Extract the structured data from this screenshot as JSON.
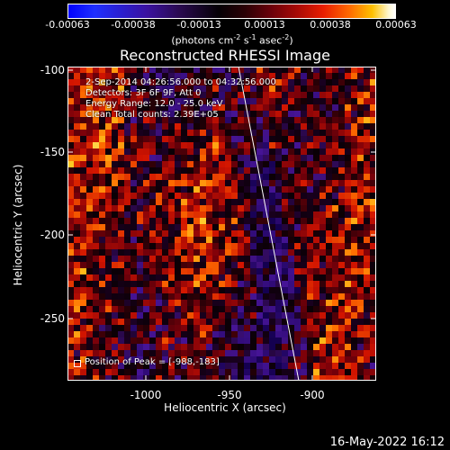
{
  "colorbar": {
    "ticks": [
      "-0.00063",
      "-0.00038",
      "-0.00013",
      "0.00013",
      "0.00038",
      "0.00063"
    ],
    "units_prefix": "(photons cm",
    "units_exp1": "-2",
    "units_mid": " s",
    "units_exp2": "-1",
    "units_mid2": " asec",
    "units_exp3": "-2",
    "units_suffix": ")"
  },
  "title": "Reconstructed RHESSI Image",
  "annotations": {
    "time_range": "2-Sep-2014 04:26:56.000 to 04:32:56.000",
    "detectors": "Detectors: 3F 6F 9F, Att 0",
    "energy": "Energy Range: 12.0 - 25.0 keV",
    "clean": "Clean     Total counts: 2.39E+05",
    "peak": "Position of Peak = [-988,-183]"
  },
  "axes": {
    "xlabel": "Heliocentric X (arcsec)",
    "ylabel": "Heliocentric Y (arcsec)",
    "xticks": [
      "-1000",
      "-950",
      "-900"
    ],
    "yticks": [
      "-100",
      "-150",
      "-200",
      "-250"
    ]
  },
  "timestamp": "16-May-2022 16:12",
  "chart_data": {
    "type": "heatmap",
    "title": "Reconstructed RHESSI Image",
    "xlabel": "Heliocentric X (arcsec)",
    "ylabel": "Heliocentric Y (arcsec)",
    "xlim": [
      -1045,
      -955
    ],
    "ylim": [
      -290,
      -98
    ],
    "colorbar_range": [
      -0.00063,
      0.00063
    ],
    "colormap": "blue-black-red-yellow-white",
    "peak_position": [
      -988,
      -183
    ],
    "limb_line": true,
    "grid": false
  }
}
